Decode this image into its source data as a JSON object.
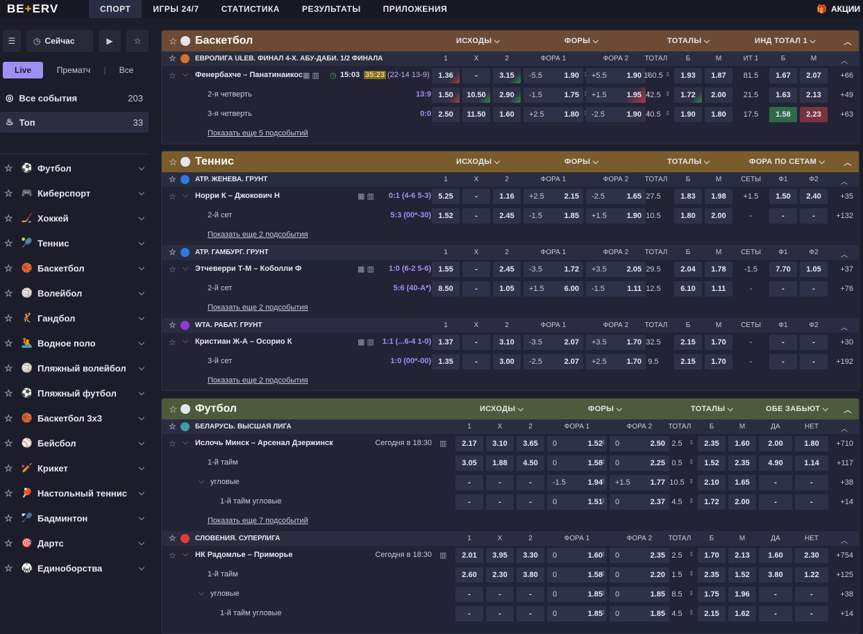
{
  "top_nav": {
    "logo_a": "BE",
    "logo_b": "+",
    "logo_c": "ERV",
    "tabs": [
      "СПОРТ",
      "ИГРЫ 24/7",
      "СТАТИСТИКА",
      "РЕЗУЛЬТАТЫ",
      "ПРИЛОЖЕНИЯ"
    ],
    "promo": "АКЦИИ"
  },
  "sidebar": {
    "now_label": "Сейчас",
    "segments": [
      "Live",
      "Прематч",
      "Все"
    ],
    "all_events": {
      "label": "Все события",
      "count": "203"
    },
    "top": {
      "label": "Топ",
      "count": "33"
    },
    "sports": [
      "Футбол",
      "Киберспорт",
      "Хоккей",
      "Теннис",
      "Баскетбол",
      "Волейбол",
      "Гандбол",
      "Водное поло",
      "Пляжный волейбол",
      "Пляжный футбол",
      "Баскетбол 3х3",
      "Бейсбол",
      "Крикет",
      "Настольный теннис",
      "Бадминтон",
      "Дартс",
      "Единоборства"
    ]
  },
  "basketball": {
    "title": "Баскетбол",
    "markets": [
      "ИСХОДЫ",
      "ФОРЫ",
      "ТОТАЛЫ",
      "ИНД ТОТАЛ 1"
    ],
    "league": "ЕВРОЛИГА ULEB. ФИНАЛ 4-Х. АБУ-ДАБИ. 1/2 ФИНАЛА",
    "cols": [
      "1",
      "X",
      "2",
      "ФОРА 1",
      "ФОРА 2",
      "ТОТАЛ",
      "Б",
      "М",
      "ИТ 1",
      "Б",
      "М"
    ],
    "match": {
      "teams": "Фенербахче – Панатинаикос",
      "time": "15:03",
      "clock": "35:23",
      "detail": "(22-14 13-9)",
      "o1": "1.36",
      "ox": "-",
      "o2": "3.15",
      "f1h": "-5.5",
      "f1": "1.90",
      "f2h": "+5.5",
      "f2": "1.90",
      "tot": "160.5",
      "tb": "1.93",
      "tm": "1.87",
      "it": "81.5",
      "itb": "1.67",
      "itm": "2.07",
      "more": "+66"
    },
    "sub1": {
      "name": "2-я четверть",
      "score": "13:9",
      "o1": "1.50",
      "ox": "10.50",
      "o2": "2.90",
      "f1h": "-1.5",
      "f1": "1.75",
      "f2h": "+1.5",
      "f2": "1.95",
      "tot": "42.5",
      "tb": "1.72",
      "tm": "2.00",
      "it": "21.5",
      "itb": "1.63",
      "itm": "2.13",
      "more": "+49"
    },
    "sub2": {
      "name": "3-я четверть",
      "score": "0:0",
      "o1": "2.50",
      "ox": "11.50",
      "o2": "1.60",
      "f1h": "+2.5",
      "f1": "1.80",
      "f2h": "-2.5",
      "f2": "1.90",
      "tot": "40.5",
      "tb": "1.90",
      "tm": "1.80",
      "it": "17.5",
      "itb": "1.58",
      "itm": "2.23",
      "more": "+63"
    },
    "show_more": "Показать еще 5 подсобытий"
  },
  "tennis": {
    "title": "Теннис",
    "markets": [
      "ИСХОДЫ",
      "ФОРЫ",
      "ТОТАЛЫ",
      "ФОРА ПО СЕТАМ"
    ],
    "cols": [
      "1",
      "X",
      "2",
      "ФОРА 1",
      "ФОРА 2",
      "ТОТАЛ",
      "Б",
      "М",
      "СЕТЫ",
      "Ф1",
      "Ф2"
    ],
    "l1": {
      "name": "ATP. ЖЕНЕВА. ГРУНТ",
      "m": {
        "teams": "Норри К – Джокович Н",
        "score": "0:1 (4-6 5-3)",
        "o1": "5.25",
        "ox": "-",
        "o2": "1.16",
        "f1h": "+2.5",
        "f1": "2.15",
        "f2h": "-2.5",
        "f2": "1.65",
        "tot": "27.5",
        "tb": "1.83",
        "tm": "1.98",
        "s": "+1.5",
        "s1": "1.50",
        "s2": "2.40",
        "more": "+35"
      },
      "s": {
        "name": "2-й сет",
        "score": "5:3 (00*-30)",
        "o1": "1.52",
        "ox": "-",
        "o2": "2.45",
        "f1h": "-1.5",
        "f1": "1.85",
        "f2h": "+1.5",
        "f2": "1.90",
        "tot": "10.5",
        "tb": "1.80",
        "tm": "2.00",
        "s": "-",
        "s1": "-",
        "s2": "-",
        "more": "+132"
      },
      "show_more": "Показать еще 2 подсобытия"
    },
    "l2": {
      "name": "ATP. ГАМБУРГ. ГРУНТ",
      "m": {
        "teams": "Этчеверри Т-М – Коболли Ф",
        "score": "1:0 (6-2 5-6)",
        "o1": "1.55",
        "ox": "-",
        "o2": "2.45",
        "f1h": "-3.5",
        "f1": "1.72",
        "f2h": "+3.5",
        "f2": "2.05",
        "tot": "29.5",
        "tb": "2.04",
        "tm": "1.78",
        "s": "-1.5",
        "s1": "7.70",
        "s2": "1.05",
        "more": "+37"
      },
      "s": {
        "name": "2-й сет",
        "score": "5:6 (40-A*)",
        "o1": "8.50",
        "ox": "-",
        "o2": "1.05",
        "f1h": "+1.5",
        "f1": "6.00",
        "f2h": "-1.5",
        "f2": "1.11",
        "tot": "12.5",
        "tb": "6.10",
        "tm": "1.11",
        "s": "-",
        "s1": "-",
        "s2": "-",
        "more": "+76"
      },
      "show_more": "Показать еще 2 подсобытия"
    },
    "l3": {
      "name": "WTA. РАБАТ. ГРУНТ",
      "m": {
        "teams": "Кристиан Ж-А – Осорио К",
        "score": "1:1 (...6-4 1-0)",
        "o1": "1.37",
        "ox": "-",
        "o2": "3.10",
        "f1h": "-3.5",
        "f1": "2.07",
        "f2h": "+3.5",
        "f2": "1.70",
        "tot": "32.5",
        "tb": "2.15",
        "tm": "1.70",
        "s": "-",
        "s1": "-",
        "s2": "-",
        "more": "+30"
      },
      "s": {
        "name": "3-й сет",
        "score": "1:0 (00*-00)",
        "o1": "1.35",
        "ox": "-",
        "o2": "3.00",
        "f1h": "-2.5",
        "f1": "2.07",
        "f2h": "+2.5",
        "f2": "1.70",
        "tot": "9.5",
        "tb": "2.15",
        "tm": "1.70",
        "s": "-",
        "s1": "-",
        "s2": "-",
        "more": "+192"
      },
      "show_more": "Показать еще 2 подсобытия"
    }
  },
  "football": {
    "title": "Футбол",
    "markets": [
      "ИСХОДЫ",
      "ФОРЫ",
      "ТОТАЛЫ",
      "ОБЕ ЗАБЬЮТ"
    ],
    "cols": [
      "1",
      "X",
      "2",
      "ФОРА 1",
      "ФОРА 2",
      "ТОТАЛ",
      "Б",
      "М",
      "ДА",
      "НЕТ"
    ],
    "l1": {
      "name": "БЕЛАРУСЬ. ВЫСШАЯ ЛИГА",
      "rows": [
        {
          "kind": "match",
          "name": "Ислочь Минск – Арсенал Дзержинск",
          "time": "Сегодня в 18:30",
          "o1": "2.17",
          "ox": "3.10",
          "o2": "3.65",
          "f1h": "0",
          "f1": "1.52",
          "f2h": "0",
          "f2": "2.50",
          "tot": "2.5",
          "tb": "2.35",
          "tm": "1.60",
          "y": "2.00",
          "n": "1.80",
          "more": "+710"
        },
        {
          "kind": "sub",
          "name": "1-й тайм",
          "o1": "3.05",
          "ox": "1.88",
          "o2": "4.50",
          "f1h": "0",
          "f1": "1.58",
          "f2h": "0",
          "f2": "2.25",
          "tot": "0.5",
          "tb": "1.52",
          "tm": "2.35",
          "y": "4.90",
          "n": "1.14",
          "more": "+117"
        },
        {
          "kind": "grp",
          "name": "угловые",
          "o1": "-",
          "ox": "-",
          "o2": "-",
          "f1h": "-1.5",
          "f1": "1.94",
          "f2h": "+1.5",
          "f2": "1.77",
          "tot": "10.5",
          "tb": "2.10",
          "tm": "1.65",
          "y": "-",
          "n": "-",
          "more": "+38"
        },
        {
          "kind": "sub2",
          "name": "1-й тайм угловые",
          "o1": "-",
          "ox": "-",
          "o2": "-",
          "f1h": "0",
          "f1": "1.51",
          "f2h": "0",
          "f2": "2.37",
          "tot": "4.5",
          "tb": "1.72",
          "tm": "2.00",
          "y": "-",
          "n": "-",
          "more": "+14"
        }
      ],
      "show_more": "Показать еще 7 подсобытий"
    },
    "l2": {
      "name": "СЛОВЕНИЯ. СУПЕРЛИГА",
      "rows": [
        {
          "kind": "match",
          "name": "НК Радомлье – Приморье",
          "time": "Сегодня в 18:30",
          "o1": "2.01",
          "ox": "3.95",
          "o2": "3.30",
          "f1h": "0",
          "f1": "1.60",
          "f2h": "0",
          "f2": "2.35",
          "tot": "2.5",
          "tb": "1.70",
          "tm": "2.13",
          "y": "1.60",
          "n": "2.30",
          "more": "+754"
        },
        {
          "kind": "sub",
          "name": "1-й тайм",
          "o1": "2.60",
          "ox": "2.30",
          "o2": "3.80",
          "f1h": "0",
          "f1": "1.58",
          "f2h": "0",
          "f2": "2.20",
          "tot": "1.5",
          "tb": "2.35",
          "tm": "1.52",
          "y": "3.80",
          "n": "1.22",
          "more": "+125"
        },
        {
          "kind": "grp",
          "name": "угловые",
          "o1": "-",
          "ox": "-",
          "o2": "-",
          "f1h": "0",
          "f1": "1.85",
          "f2h": "0",
          "f2": "1.85",
          "tot": "8.5",
          "tb": "1.75",
          "tm": "1.96",
          "y": "-",
          "n": "-",
          "more": "+38"
        },
        {
          "kind": "sub2",
          "name": "1-й тайм угловые",
          "o1": "-",
          "ox": "-",
          "o2": "-",
          "f1h": "0",
          "f1": "1.85",
          "f2h": "0",
          "f2": "1.85",
          "tot": "4.5",
          "tb": "2.15",
          "tm": "1.62",
          "y": "-",
          "n": "-",
          "more": "+14"
        }
      ]
    }
  },
  "colors": {
    "basketball_header": "#6d4a33",
    "tennis_header": "#7a5c2c",
    "football_header": "#4c5b3b",
    "accent": "#9f8ff2",
    "score": "#a68ef5"
  },
  "icons": [
    "sliders-icon",
    "clock-icon",
    "video-icon",
    "star-icon",
    "gift-icon",
    "chevron-down-icon",
    "chevron-up-icon"
  ]
}
